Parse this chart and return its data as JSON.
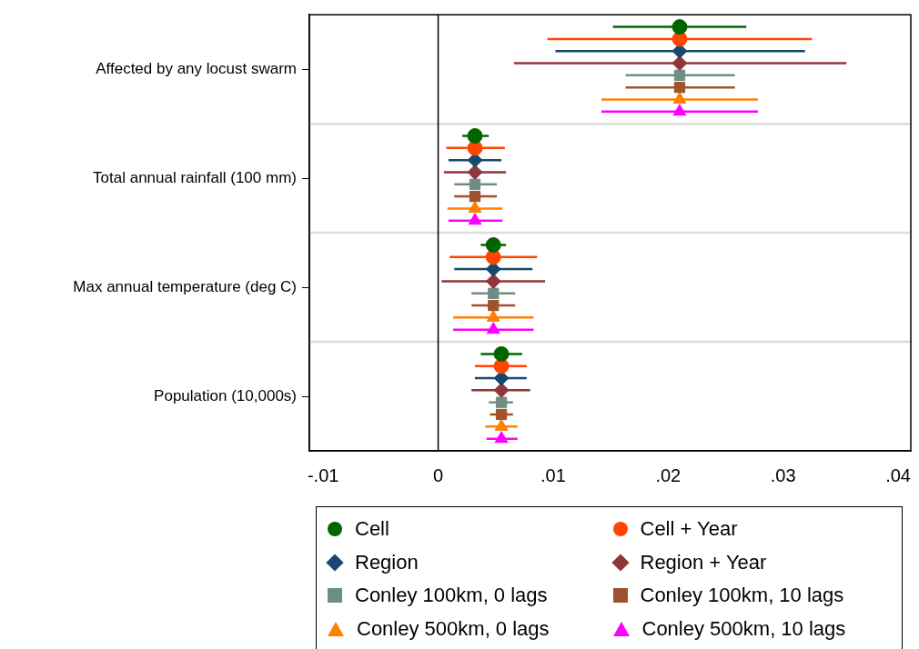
{
  "chart_data": {
    "type": "scatter",
    "orientation": "horizontal",
    "categories": [
      "Affected by any locust swarm",
      "Total annual rainfall (100 mm)",
      "Max annual temperature (deg C)",
      "Population (10,000s)"
    ],
    "xlim": [
      -0.0112,
      0.0411
    ],
    "xticks": [
      {
        "value": -0.01,
        "label": "-.01"
      },
      0,
      {
        "value": 0.01,
        "label": ".01"
      },
      {
        "value": 0.02,
        "label": ".02"
      },
      {
        "value": 0.03,
        "label": ".03"
      },
      {
        "value": 0.04,
        "label": ".04"
      }
    ],
    "grid": "y",
    "legend": "bottom",
    "ref_lines": [
      {
        "axis": "x",
        "value": 0,
        "color": "#000000"
      }
    ],
    "series": [
      {
        "name": "Cell",
        "color": "#006400",
        "marker": "circle",
        "values": [
          0.021,
          0.0032,
          0.0048,
          0.0055
        ],
        "errors": [
          [
            0.0152,
            0.0268
          ],
          [
            0.0021,
            0.0044
          ],
          [
            0.0037,
            0.0059
          ],
          [
            0.0037,
            0.0073
          ]
        ]
      },
      {
        "name": "Cell + Year",
        "color": "#ff4500",
        "marker": "circle",
        "values": [
          0.021,
          0.0032,
          0.0048,
          0.0055
        ],
        "errors": [
          [
            0.0095,
            0.0325
          ],
          [
            0.0007,
            0.0058
          ],
          [
            0.001,
            0.0086
          ],
          [
            0.0032,
            0.0077
          ]
        ]
      },
      {
        "name": "Region",
        "color": "#1a476f",
        "marker": "diamond",
        "values": [
          0.021,
          0.0032,
          0.0048,
          0.0055
        ],
        "errors": [
          [
            0.0102,
            0.0319
          ],
          [
            0.0009,
            0.0055
          ],
          [
            0.0014,
            0.0082
          ],
          [
            0.0032,
            0.0077
          ]
        ]
      },
      {
        "name": "Region + Year",
        "color": "#90353b",
        "marker": "diamond",
        "values": [
          0.021,
          0.0032,
          0.0048,
          0.0055
        ],
        "errors": [
          [
            0.0066,
            0.0355
          ],
          [
            0.0005,
            0.0059
          ],
          [
            0.0003,
            0.0093
          ],
          [
            0.0029,
            0.008
          ]
        ]
      },
      {
        "name": "Conley 100km, 0 lags",
        "color": "#6e8e84",
        "marker": "square",
        "values": [
          0.021,
          0.0032,
          0.0048,
          0.0055
        ],
        "errors": [
          [
            0.0163,
            0.0258
          ],
          [
            0.0014,
            0.0051
          ],
          [
            0.0029,
            0.0067
          ],
          [
            0.0044,
            0.0065
          ]
        ]
      },
      {
        "name": "Conley 100km, 10 lags",
        "color": "#a0522d",
        "marker": "square",
        "values": [
          0.021,
          0.0032,
          0.0048,
          0.0055
        ],
        "errors": [
          [
            0.0163,
            0.0258
          ],
          [
            0.0014,
            0.0051
          ],
          [
            0.0029,
            0.0067
          ],
          [
            0.0045,
            0.0065
          ]
        ]
      },
      {
        "name": "Conley 500km, 0 lags",
        "color": "#ff8000",
        "marker": "triangle",
        "values": [
          0.021,
          0.0032,
          0.0048,
          0.0055
        ],
        "errors": [
          [
            0.0142,
            0.0278
          ],
          [
            0.0008,
            0.0056
          ],
          [
            0.0013,
            0.0083
          ],
          [
            0.0041,
            0.0069
          ]
        ]
      },
      {
        "name": "Conley 500km, 10 lags",
        "color": "#ff00ff",
        "marker": "triangle",
        "values": [
          0.021,
          0.0032,
          0.0048,
          0.0055
        ],
        "errors": [
          [
            0.0142,
            0.0278
          ],
          [
            0.0009,
            0.0056
          ],
          [
            0.0013,
            0.0083
          ],
          [
            0.0042,
            0.0069
          ]
        ]
      }
    ]
  }
}
